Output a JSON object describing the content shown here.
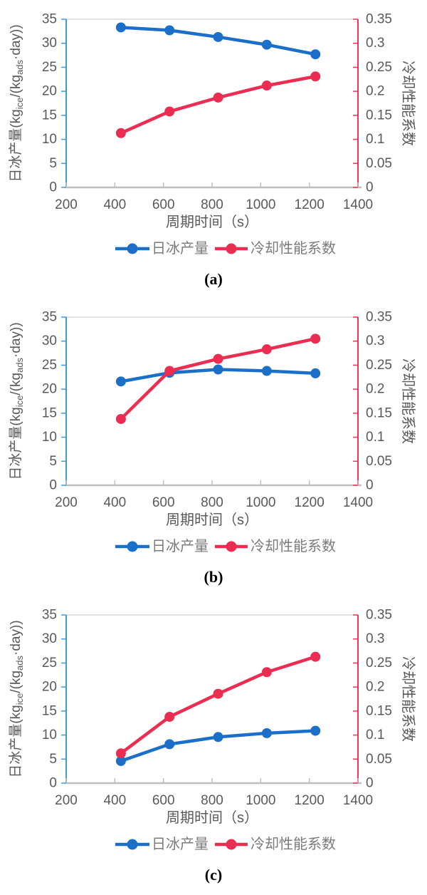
{
  "page": {
    "background": "#ffffff"
  },
  "colors": {
    "series_blue": "#1c6fc8",
    "series_red": "#ea2d50",
    "axis_left": "#3f9bd8",
    "axis_right": "#ee3558",
    "axis_bottom": "#bfbfbf",
    "plot_border_top": "#d9d9d9",
    "tick_label": "#595959",
    "legend_label": "#7a7a7a",
    "caption": "#000000"
  },
  "axis_text": {
    "xlabel": "周期时间（s）",
    "ylabel_left": "日冰产量(kgice/(kgads·day))",
    "ylabel_left_parts": [
      {
        "text": "日冰产量(kg",
        "sub": false
      },
      {
        "text": "ice",
        "sub": true
      },
      {
        "text": "/(kg",
        "sub": false
      },
      {
        "text": "ads",
        "sub": true
      },
      {
        "text": "·day))",
        "sub": false
      }
    ],
    "ylabel_right": "冷却性能系数"
  },
  "legend": {
    "items": [
      {
        "label": "日冰产量",
        "color_key": "series_blue"
      },
      {
        "label": "冷却性能系数",
        "color_key": "series_red"
      }
    ]
  },
  "chart_data": [
    {
      "type": "line",
      "caption": "(a)",
      "xlabel": "周期时间（s）",
      "ylabel_left": "日冰产量(kgice/(kgads·day))",
      "ylabel_right": "冷却性能系数",
      "xlim": [
        200,
        1400
      ],
      "x_ticks": [
        200,
        400,
        600,
        800,
        1000,
        1200,
        1400
      ],
      "ylim_left": [
        0,
        35
      ],
      "y_ticks_left": [
        0,
        5,
        10,
        15,
        20,
        25,
        30,
        35
      ],
      "ylim_right": [
        0,
        0.35
      ],
      "y_ticks_right": [
        {
          "value": 0,
          "label": "0"
        },
        {
          "value": 0.05,
          "label": "0.05"
        },
        {
          "value": 0.1,
          "label": "0.1"
        },
        {
          "value": 0.15,
          "label": "0.15"
        },
        {
          "value": 0.2,
          "label": "0.2"
        },
        {
          "value": 0.25,
          "label": "0.25"
        },
        {
          "value": 0.3,
          "label": "0.3"
        },
        {
          "value": 0.35,
          "label": "0.35"
        }
      ],
      "grid": false,
      "legend_position": "bottom",
      "x": [
        425,
        625,
        825,
        1025,
        1225
      ],
      "series": [
        {
          "name": "日冰产量",
          "axis": "left",
          "color_key": "series_blue",
          "values": [
            33.3,
            32.7,
            31.3,
            29.7,
            27.7
          ]
        },
        {
          "name": "冷却性能系数",
          "axis": "right",
          "color_key": "series_red",
          "values": [
            0.113,
            0.158,
            0.187,
            0.212,
            0.231
          ]
        }
      ]
    },
    {
      "type": "line",
      "caption": "(b)",
      "xlabel": "周期时间（s）",
      "ylabel_left": "日冰产量(kgice/(kgads·day))",
      "ylabel_right": "冷却性能系数",
      "xlim": [
        200,
        1400
      ],
      "x_ticks": [
        200,
        400,
        600,
        800,
        1000,
        1200,
        1400
      ],
      "ylim_left": [
        0,
        35
      ],
      "y_ticks_left": [
        0,
        5,
        10,
        15,
        20,
        25,
        30,
        35
      ],
      "ylim_right": [
        0,
        0.35
      ],
      "y_ticks_right": [
        {
          "value": 0,
          "label": "0"
        },
        {
          "value": 0.05,
          "label": "0.05"
        },
        {
          "value": 0.1,
          "label": "0.1"
        },
        {
          "value": 0.15,
          "label": "0.15"
        },
        {
          "value": 0.2,
          "label": "0.2"
        },
        {
          "value": 0.25,
          "label": "0.25"
        },
        {
          "value": 0.3,
          "label": "0.3"
        },
        {
          "value": 0.35,
          "label": "0.35"
        }
      ],
      "grid": false,
      "legend_position": "bottom",
      "x": [
        425,
        625,
        825,
        1025,
        1225
      ],
      "series": [
        {
          "name": "日冰产量",
          "axis": "left",
          "color_key": "series_blue",
          "values": [
            21.6,
            23.4,
            24.1,
            23.8,
            23.3
          ]
        },
        {
          "name": "冷却性能系数",
          "axis": "right",
          "color_key": "series_red",
          "values": [
            0.138,
            0.238,
            0.263,
            0.283,
            0.305
          ]
        }
      ]
    },
    {
      "type": "line",
      "caption": "(c)",
      "xlabel": "周期时间（s）",
      "ylabel_left": "日冰产量(kgice/(kgads·day))",
      "ylabel_right": "冷却性能系数",
      "xlim": [
        200,
        1400
      ],
      "x_ticks": [
        200,
        400,
        600,
        800,
        1000,
        1200,
        1400
      ],
      "ylim_left": [
        0,
        35
      ],
      "y_ticks_left": [
        0,
        5,
        10,
        15,
        20,
        25,
        30,
        35
      ],
      "ylim_right": [
        0,
        0.35
      ],
      "y_ticks_right": [
        {
          "value": 0,
          "label": "0"
        },
        {
          "value": 0.05,
          "label": "0.05"
        },
        {
          "value": 0.1,
          "label": "0.1"
        },
        {
          "value": 0.15,
          "label": "0.15"
        },
        {
          "value": 0.2,
          "label": "0.2"
        },
        {
          "value": 0.25,
          "label": "0.25"
        },
        {
          "value": 0.3,
          "label": "0.3"
        },
        {
          "value": 0.35,
          "label": "0.35"
        }
      ],
      "grid": false,
      "legend_position": "bottom",
      "x": [
        425,
        625,
        825,
        1025,
        1225
      ],
      "series": [
        {
          "name": "日冰产量",
          "axis": "left",
          "color_key": "series_blue",
          "values": [
            4.6,
            8.1,
            9.6,
            10.4,
            10.9
          ]
        },
        {
          "name": "冷却性能系数",
          "axis": "right",
          "color_key": "series_red",
          "values": [
            0.062,
            0.138,
            0.186,
            0.231,
            0.263
          ]
        }
      ]
    }
  ]
}
